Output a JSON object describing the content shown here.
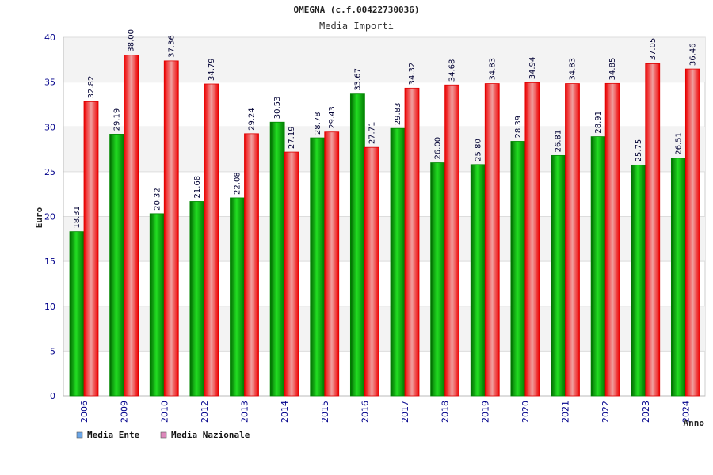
{
  "chart_data": {
    "type": "bar",
    "title": "OMEGNA (c.f.00422730036)",
    "subtitle": "Media Importi",
    "xlabel": "Anno",
    "ylabel": "Euro",
    "ylim": [
      0,
      40
    ],
    "yticks": [
      0,
      5,
      10,
      15,
      20,
      25,
      30,
      35,
      40
    ],
    "grid": true,
    "legend_position": "bottom-left",
    "categories": [
      "2006",
      "2009",
      "2010",
      "2012",
      "2013",
      "2014",
      "2015",
      "2016",
      "2017",
      "2018",
      "2019",
      "2020",
      "2021",
      "2022",
      "2023",
      "2024"
    ],
    "series": [
      {
        "name": "Media Ente",
        "color": "#00aa00",
        "legend_color": "#6aa6e8",
        "values": [
          18.31,
          29.19,
          20.32,
          21.68,
          22.08,
          30.53,
          28.78,
          33.67,
          29.83,
          26.0,
          25.8,
          28.39,
          26.81,
          28.91,
          25.75,
          26.51
        ],
        "labels": [
          "18.31",
          "29.19",
          "20.32",
          "21.68",
          "22.08",
          "30.53",
          "28.78",
          "33.67",
          "29.83",
          "26.00",
          "25.80",
          "28.39",
          "26.81",
          "28.91",
          "25.75",
          "26.51"
        ]
      },
      {
        "name": "Media Nazionale",
        "color": "#ee1111",
        "legend_color": "#dd88bb",
        "values": [
          32.82,
          38.0,
          37.36,
          34.79,
          29.24,
          27.19,
          29.43,
          27.71,
          34.32,
          34.68,
          34.83,
          34.94,
          34.83,
          34.85,
          37.05,
          36.46
        ],
        "labels": [
          "32.82",
          "38.00",
          "37.36",
          "34.79",
          "29.24",
          "27.19",
          "29.43",
          "27.71",
          "34.32",
          "34.68",
          "34.83",
          "34.94",
          "34.83",
          "34.85",
          "37.05",
          "36.46"
        ]
      }
    ]
  }
}
